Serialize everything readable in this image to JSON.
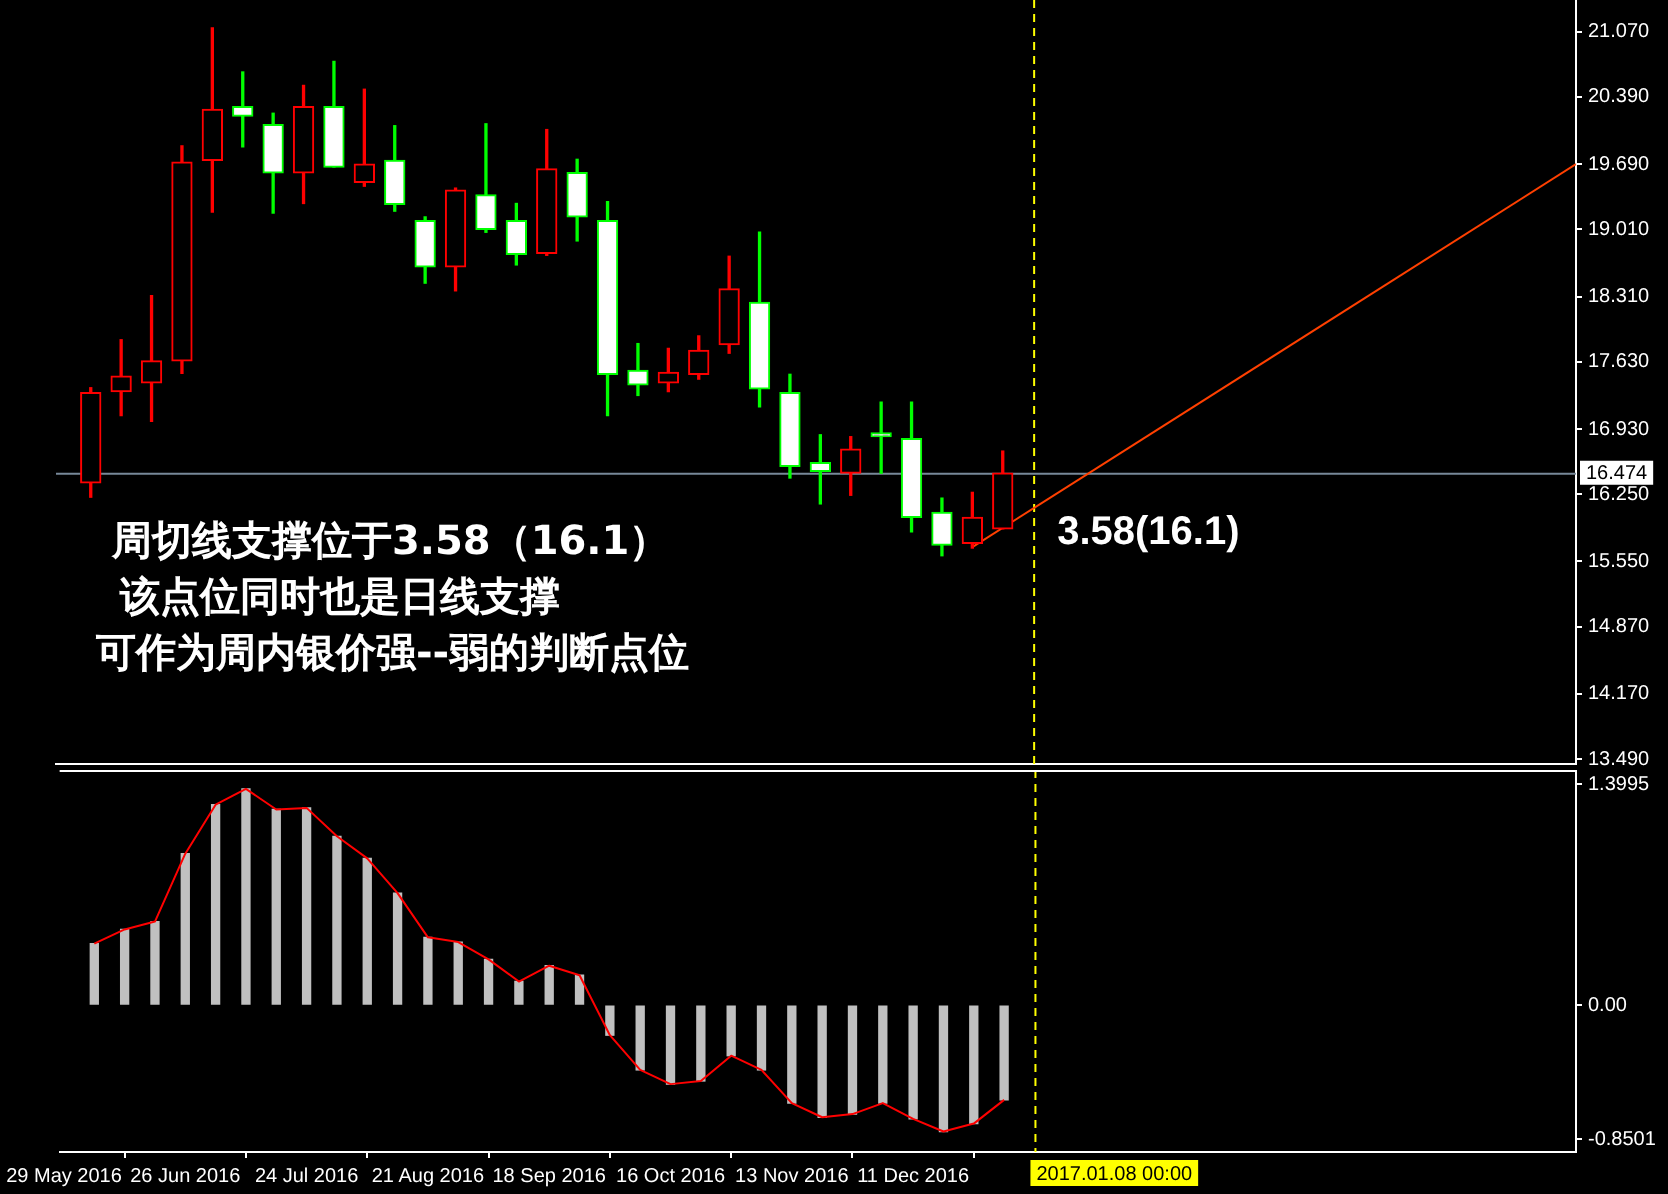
{
  "chart_data": [
    {
      "type": "candlestick",
      "x": [
        "2016-06-05",
        "2016-06-12",
        "2016-06-19",
        "2016-06-26",
        "2016-07-03",
        "2016-07-10",
        "2016-07-17",
        "2016-07-24",
        "2016-07-31",
        "2016-08-07",
        "2016-08-14",
        "2016-08-21",
        "2016-08-28",
        "2016-09-04",
        "2016-09-11",
        "2016-09-18",
        "2016-09-25",
        "2016-10-02",
        "2016-10-09",
        "2016-10-16",
        "2016-10-23",
        "2016-10-30",
        "2016-11-06",
        "2016-11-13",
        "2016-11-20",
        "2016-11-27",
        "2016-12-04",
        "2016-12-11",
        "2016-12-18",
        "2016-12-25",
        "2017-01-01"
      ],
      "ohlc": [
        [
          16.37,
          17.36,
          16.22,
          17.31
        ],
        [
          17.32,
          17.86,
          17.07,
          17.48
        ],
        [
          17.41,
          18.32,
          17.01,
          17.64
        ],
        [
          17.64,
          19.88,
          17.51,
          19.71
        ],
        [
          19.73,
          21.11,
          19.19,
          20.26
        ],
        [
          20.29,
          20.65,
          19.87,
          20.19
        ],
        [
          20.1,
          20.22,
          19.18,
          19.6
        ],
        [
          19.6,
          20.51,
          19.28,
          20.29
        ],
        [
          20.29,
          20.76,
          19.66,
          19.66
        ],
        [
          19.5,
          20.47,
          19.46,
          19.69
        ],
        [
          19.73,
          20.09,
          19.2,
          19.27
        ],
        [
          19.1,
          19.14,
          18.45,
          18.62
        ],
        [
          18.62,
          19.44,
          18.37,
          19.42
        ],
        [
          19.37,
          20.11,
          18.98,
          19.01
        ],
        [
          19.1,
          19.28,
          18.64,
          18.75
        ],
        [
          18.76,
          20.05,
          18.74,
          19.64
        ],
        [
          19.6,
          19.74,
          18.89,
          19.14
        ],
        [
          19.1,
          19.3,
          17.07,
          17.5
        ],
        [
          17.54,
          17.82,
          17.28,
          17.39
        ],
        [
          17.41,
          17.77,
          17.32,
          17.52
        ],
        [
          17.5,
          17.9,
          17.45,
          17.75
        ],
        [
          17.81,
          18.73,
          17.72,
          18.39
        ],
        [
          18.25,
          18.98,
          17.16,
          17.35
        ],
        [
          17.31,
          17.5,
          16.42,
          16.54
        ],
        [
          16.58,
          16.87,
          16.15,
          16.49
        ],
        [
          16.47,
          16.85,
          16.24,
          16.72
        ],
        [
          16.89,
          17.21,
          16.47,
          16.85
        ],
        [
          16.83,
          17.21,
          15.86,
          16.01
        ],
        [
          16.06,
          16.21,
          15.61,
          15.72
        ],
        [
          15.74,
          16.27,
          15.69,
          16.01
        ],
        [
          15.89,
          16.7,
          15.89,
          16.47
        ]
      ],
      "colors": [
        "#ff0000",
        "#ff0000",
        "#ff0000",
        "#ff0000",
        "#ff0000",
        "#00ff00",
        "#00ff00",
        "#ff0000",
        "#00ff00",
        "#ff0000",
        "#00ff00",
        "#00ff00",
        "#ff0000",
        "#00ff00",
        "#00ff00",
        "#ff0000",
        "#00ff00",
        "#00ff00",
        "#00ff00",
        "#ff0000",
        "#ff0000",
        "#ff0000",
        "#00ff00",
        "#00ff00",
        "#00ff00",
        "#ff0000",
        "#00ff00",
        "#00ff00",
        "#00ff00",
        "#ff0000",
        "#ff0000"
      ],
      "series": [
        {
          "type": "line",
          "x": [
            "2016-12-25",
            "2017-05-13"
          ],
          "values": [
            15.7,
            19.69
          ],
          "color": "#ff4000"
        }
      ],
      "xlim": [
        "2016-05-28",
        "2017-05-13"
      ],
      "ylim": [
        13.44,
        21.4
      ],
      "yticks": [
        {
          "value": 21.07,
          "label": "21.070"
        },
        {
          "value": 20.39,
          "label": "20.390"
        },
        {
          "value": 19.69,
          "label": "19.690"
        },
        {
          "value": 19.01,
          "label": "19.010"
        },
        {
          "value": 18.31,
          "label": "18.310"
        },
        {
          "value": 17.63,
          "label": "17.630"
        },
        {
          "value": 16.93,
          "label": "16.930"
        },
        {
          "value": 16.25,
          "label": "16.250"
        },
        {
          "value": 15.55,
          "label": "15.550"
        },
        {
          "value": 14.87,
          "label": "14.870"
        },
        {
          "value": 14.17,
          "label": "14.170"
        },
        {
          "value": 13.49,
          "label": "13.490"
        }
      ],
      "tick_labels": "y",
      "ref_lines": [
        {
          "axis": "y",
          "value": 16.474,
          "label": "16.474",
          "color": "#778899"
        },
        {
          "axis": "x",
          "value": "2017-01-08",
          "color": "#ffff00",
          "line_style": "dashed"
        }
      ],
      "annotations": [
        "周切线支撑位于3.58（16.1）",
        "该点位同时也是日线支撑",
        "可作为周内银价强--弱的判断点位",
        {
          "text": "3.58(16.1)",
          "x": "2017-01-08",
          "y": 16.1
        }
      ]
    },
    {
      "type": "bar",
      "x": [
        "2016-06-05",
        "2016-06-12",
        "2016-06-19",
        "2016-06-26",
        "2016-07-03",
        "2016-07-10",
        "2016-07-17",
        "2016-07-24",
        "2016-07-31",
        "2016-08-07",
        "2016-08-14",
        "2016-08-21",
        "2016-08-28",
        "2016-09-04",
        "2016-09-11",
        "2016-09-18",
        "2016-09-25",
        "2016-10-02",
        "2016-10-09",
        "2016-10-16",
        "2016-10-23",
        "2016-10-30",
        "2016-11-06",
        "2016-11-13",
        "2016-11-20",
        "2016-11-27",
        "2016-12-04",
        "2016-12-11",
        "2016-12-18",
        "2016-12-25",
        "2017-01-01"
      ],
      "series": [
        {
          "color": "#c0c0c0",
          "values": [
            0.39,
            0.48,
            0.53,
            0.96,
            1.27,
            1.37,
            1.24,
            1.25,
            1.07,
            0.93,
            0.71,
            0.43,
            0.4,
            0.29,
            0.15,
            0.25,
            0.19,
            -0.19,
            -0.41,
            -0.5,
            -0.48,
            -0.32,
            -0.41,
            -0.62,
            -0.71,
            -0.69,
            -0.62,
            -0.72,
            -0.8,
            -0.75,
            -0.6
          ]
        },
        {
          "type": "line",
          "color": "#ff0000",
          "values": [
            0.39,
            0.48,
            0.53,
            0.96,
            1.27,
            1.37,
            1.24,
            1.25,
            1.07,
            0.93,
            0.71,
            0.43,
            0.4,
            0.29,
            0.15,
            0.25,
            0.19,
            -0.19,
            -0.41,
            -0.5,
            -0.48,
            -0.32,
            -0.41,
            -0.62,
            -0.71,
            -0.69,
            -0.62,
            -0.72,
            -0.8,
            -0.75,
            -0.6
          ]
        }
      ],
      "xlim": [
        "2016-05-28",
        "2017-05-13"
      ],
      "xticks": [
        {
          "value": "2016-05-29",
          "label": "29 May 2016"
        },
        {
          "value": "2016-06-26",
          "label": "26 Jun 2016"
        },
        {
          "value": "2016-07-24",
          "label": "24 Jul 2016"
        },
        {
          "value": "2016-08-21",
          "label": "21 Aug 2016"
        },
        {
          "value": "2016-09-18",
          "label": "18 Sep 2016"
        },
        {
          "value": "2016-10-16",
          "label": "16 Oct 2016"
        },
        {
          "value": "2016-11-13",
          "label": "13 Nov 2016"
        },
        {
          "value": "2016-12-11",
          "label": "11 Dec 2016"
        }
      ],
      "ylim": [
        -0.93,
        1.49
      ],
      "yticks": [
        1.3995,
        {
          "value": 0,
          "label": "0.00"
        },
        -0.8501
      ],
      "ref_lines": [
        {
          "axis": "x",
          "value": "2017-01-08",
          "label": "2017.01.08 00:00",
          "color": "#ffff00",
          "line_style": "dashed"
        }
      ]
    }
  ]
}
